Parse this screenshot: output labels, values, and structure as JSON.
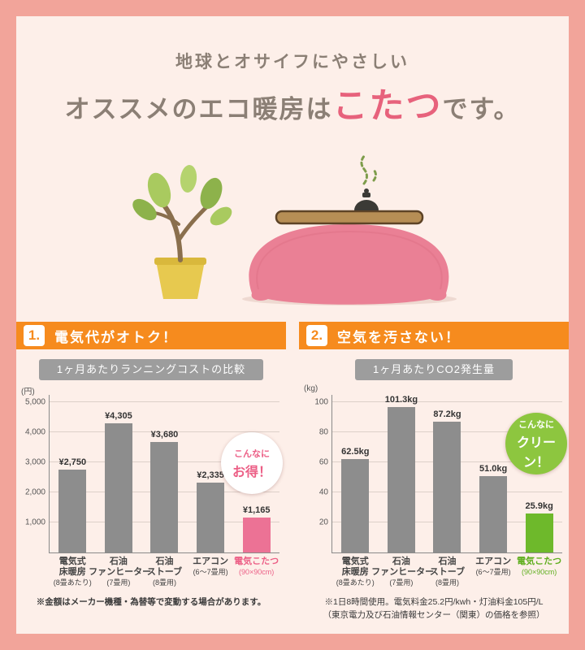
{
  "header": {
    "subtitle": "地球とオサイフにやさしい",
    "title_prefix": "オススメのエコ暖房は",
    "title_highlight": "こたつ",
    "title_suffix": "です。"
  },
  "sections": [
    {
      "number": "1.",
      "heading": "電気代がオトク！",
      "footnote_lines": [
        "※金額はメーカー機種・為替等で変動する場合があります。",
        ""
      ]
    },
    {
      "number": "2.",
      "heading": "空気を汚さない！",
      "footnote_lines": [
        "※1日8時間使用。電気料金25.2円/kwh・灯油料金105円/L",
        "（東京電力及び石油情報センター（関東）の価格を参照）"
      ]
    }
  ],
  "chart_data": [
    {
      "type": "bar",
      "title": "1ヶ月あたりランニングコストの比較",
      "unit": "(円)",
      "ylabel": "円",
      "ylim": [
        0,
        5250
      ],
      "yticks": [
        1000,
        2000,
        3000,
        4000,
        5000
      ],
      "ytick_labels": [
        "1,000",
        "2,000",
        "3,000",
        "4,000",
        "5,000"
      ],
      "grid": true,
      "bars": [
        {
          "label_lines": [
            "電気式",
            "床暖房"
          ],
          "note": "(8畳あたり)",
          "value": 2750,
          "value_label": "¥2,750",
          "color": "#8d8d8d",
          "label_color": "#444444"
        },
        {
          "label_lines": [
            "石油",
            "ファンヒーター"
          ],
          "note": "(7畳用)",
          "value": 4305,
          "value_label": "¥4,305",
          "color": "#8d8d8d",
          "label_color": "#444444"
        },
        {
          "label_lines": [
            "石油",
            "ストーブ"
          ],
          "note": "(8畳用)",
          "value": 3680,
          "value_label": "¥3,680",
          "color": "#8d8d8d",
          "label_color": "#444444"
        },
        {
          "label_lines": [
            "エアコン"
          ],
          "note": "(6〜7畳用)",
          "value": 2335,
          "value_label": "¥2,335",
          "color": "#8d8d8d",
          "label_color": "#444444"
        },
        {
          "label_lines": [
            "電気こたつ"
          ],
          "note": "(90×90cm)",
          "value": 1165,
          "value_label": "¥1,165",
          "color": "#ec7295",
          "label_color": "#ec5f86"
        }
      ],
      "badge": {
        "lines": [
          "こんなに",
          "お得！"
        ],
        "bg": "#ffffff",
        "color": "#ec5f86"
      }
    },
    {
      "type": "bar",
      "title": "1ヶ月あたりCO2発生量",
      "unit": "(kg)",
      "ylabel": "kg",
      "ylim": [
        0,
        105
      ],
      "yticks": [
        20,
        40,
        60,
        80,
        100
      ],
      "ytick_labels": [
        "20",
        "40",
        "60",
        "80",
        "100"
      ],
      "grid": true,
      "bars": [
        {
          "label_lines": [
            "電気式",
            "床暖房"
          ],
          "note": "(8畳あたり)",
          "value": 62.5,
          "value_label": "62.5kg",
          "color": "#8d8d8d",
          "label_color": "#444444"
        },
        {
          "label_lines": [
            "石油",
            "ファンヒーター"
          ],
          "note": "(7畳用)",
          "value": 101.3,
          "value_label": "101.3kg",
          "color": "#8d8d8d",
          "label_color": "#444444"
        },
        {
          "label_lines": [
            "石油",
            "ストーブ"
          ],
          "note": "(8畳用)",
          "value": 87.2,
          "value_label": "87.2kg",
          "color": "#8d8d8d",
          "label_color": "#444444"
        },
        {
          "label_lines": [
            "エアコン"
          ],
          "note": "(6〜7畳用)",
          "value": 51.0,
          "value_label": "51.0kg",
          "color": "#8d8d8d",
          "label_color": "#444444"
        },
        {
          "label_lines": [
            "電気こたつ"
          ],
          "note": "(90×90cm)",
          "value": 25.9,
          "value_label": "25.9kg",
          "color": "#6eb92b",
          "label_color": "#5fae1e"
        }
      ],
      "badge": {
        "lines": [
          "こんなに",
          "クリーン！"
        ],
        "bg": "#8dc63f",
        "color": "#ffffff"
      }
    }
  ],
  "colors": {
    "outer_bg": "#f2a49a",
    "inner_bg": "#fdefe9",
    "accent_orange": "#f68b1e",
    "chart_title_gray": "#9d9d9d",
    "highlight_pink": "#e7627c",
    "kotatsu_bar_pink": "#ec7295",
    "eco_green": "#6eb92b"
  }
}
